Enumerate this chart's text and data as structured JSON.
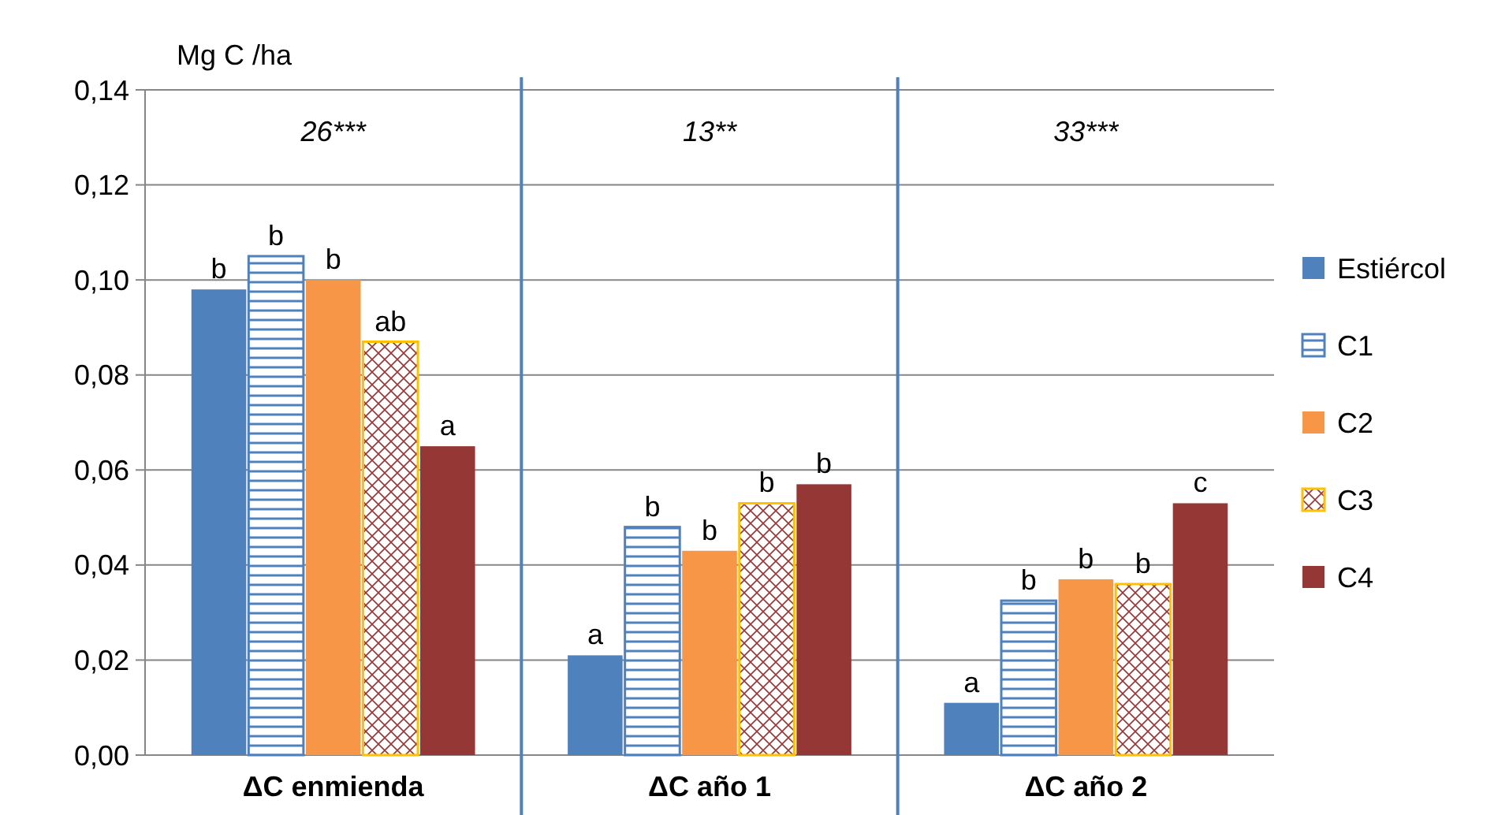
{
  "chart_data": {
    "type": "bar",
    "ylabel": "Mg C /ha",
    "categories": [
      "ΔC enmienda",
      "ΔC año 1",
      "ΔC año 2"
    ],
    "series": [
      {
        "name": "Estiércol",
        "color": "#4f81bd",
        "values": [
          0.098,
          0.021,
          0.011
        ],
        "value_labels": [
          "b",
          "a",
          "a"
        ]
      },
      {
        "name": "C1",
        "color": "#4f81bd",
        "values": [
          0.105,
          0.048,
          0.0325
        ],
        "value_labels": [
          "b",
          "b",
          "b"
        ]
      },
      {
        "name": "C2",
        "color": "#f79646",
        "values": [
          0.1,
          0.043,
          0.037
        ],
        "value_labels": [
          "b",
          "b",
          "b"
        ]
      },
      {
        "name": "C3",
        "color": "#ffc000",
        "values": [
          0.087,
          0.053,
          0.036
        ],
        "value_labels": [
          "ab",
          "b",
          "b"
        ]
      },
      {
        "name": "C4",
        "color": "#953735",
        "values": [
          0.065,
          0.057,
          0.053
        ],
        "value_labels": [
          "a",
          "b",
          "c"
        ]
      }
    ],
    "annotations": [
      "26***",
      "13**",
      "33***"
    ],
    "ylim": [
      0,
      0.14
    ],
    "yticks": [
      {
        "value": 0,
        "label": "0,00"
      },
      {
        "value": 0.02,
        "label": "0,02"
      },
      {
        "value": 0.04,
        "label": "0,04"
      },
      {
        "value": 0.06,
        "label": "0,06"
      },
      {
        "value": 0.08,
        "label": "0,08"
      },
      {
        "value": 0.1,
        "label": "0,10"
      },
      {
        "value": 0.12,
        "label": "0,12"
      },
      {
        "value": 0.14,
        "label": "0,14"
      }
    ],
    "grid": "y",
    "legend": "right"
  }
}
